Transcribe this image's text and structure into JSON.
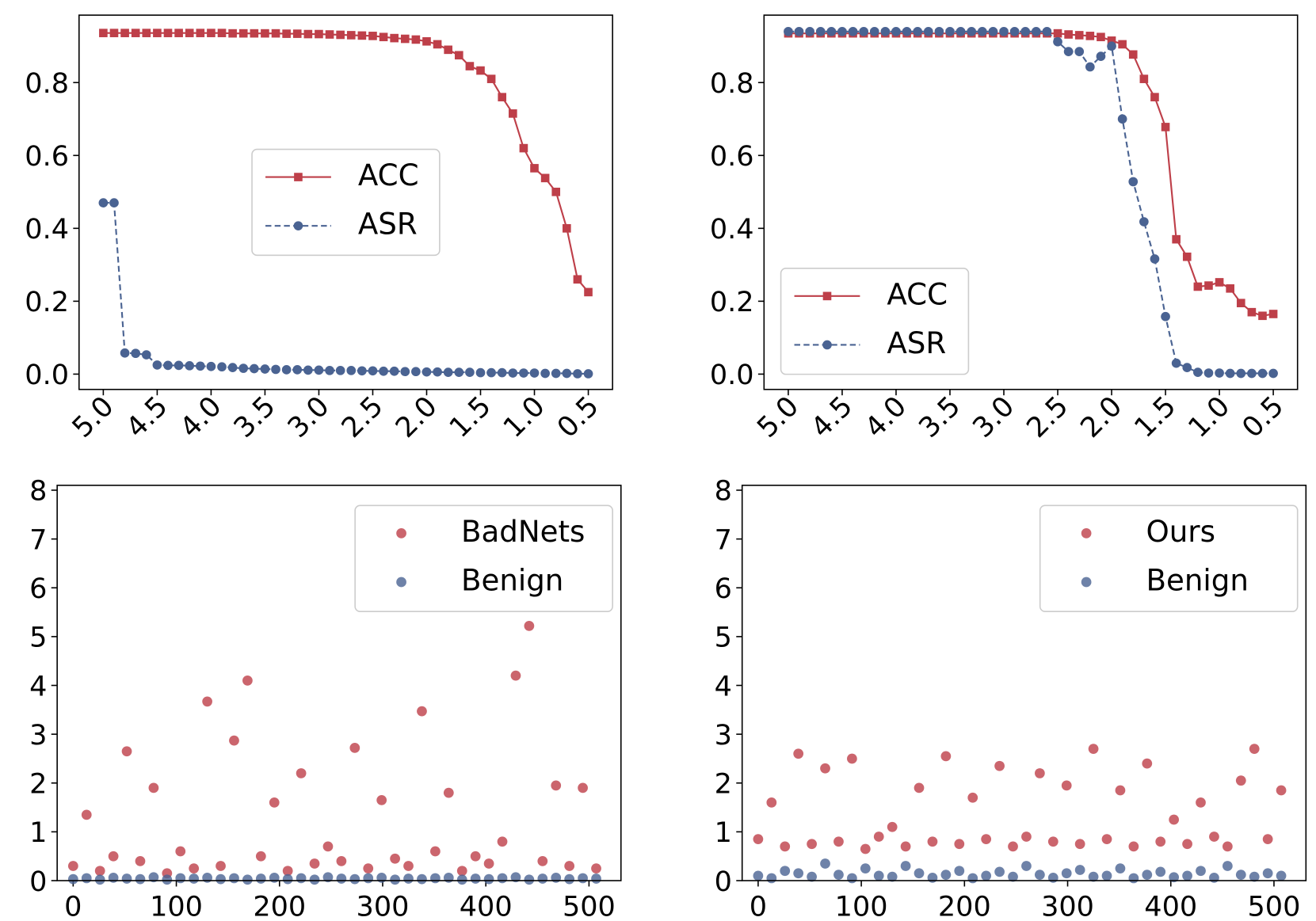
{
  "chart_data": [
    {
      "type": "line",
      "x": [
        5,
        4.9,
        4.8,
        4.7,
        4.6,
        4.5,
        4.4,
        4.3,
        4.2,
        4.1,
        4,
        3.9,
        3.8,
        3.7,
        3.6,
        3.5,
        3.4,
        3.3,
        3.2,
        3.1,
        3,
        2.9,
        2.8,
        2.7,
        2.6,
        2.5,
        2.4,
        2.3,
        2.2,
        2.1,
        2,
        1.9,
        1.8,
        1.7,
        1.6,
        1.5,
        1.4,
        1.3,
        1.2,
        1.1,
        1,
        0.9,
        0.8,
        0.7,
        0.6,
        0.5
      ],
      "series": [
        {
          "name": "ACC",
          "color": "#be3f49",
          "linestyle": "solid",
          "marker": "square",
          "values": [
            0.936,
            0.936,
            0.936,
            0.936,
            0.936,
            0.936,
            0.936,
            0.936,
            0.936,
            0.936,
            0.936,
            0.936,
            0.935,
            0.935,
            0.935,
            0.935,
            0.935,
            0.934,
            0.934,
            0.933,
            0.933,
            0.932,
            0.931,
            0.93,
            0.929,
            0.928,
            0.925,
            0.922,
            0.92,
            0.918,
            0.913,
            0.905,
            0.89,
            0.875,
            0.845,
            0.833,
            0.81,
            0.76,
            0.715,
            0.62,
            0.565,
            0.538,
            0.5,
            0.4,
            0.26,
            0.225
          ]
        },
        {
          "name": "ASR",
          "color": "#4a6392",
          "linestyle": "dashed",
          "marker": "circle",
          "values": [
            0.47,
            0.47,
            0.058,
            0.057,
            0.053,
            0.025,
            0.024,
            0.024,
            0.023,
            0.022,
            0.021,
            0.02,
            0.018,
            0.016,
            0.015,
            0.014,
            0.013,
            0.012,
            0.012,
            0.011,
            0.011,
            0.01,
            0.01,
            0.01,
            0.009,
            0.009,
            0.008,
            0.008,
            0.007,
            0.007,
            0.006,
            0.006,
            0.005,
            0.005,
            0.005,
            0.004,
            0.004,
            0.004,
            0.003,
            0.003,
            0.003,
            0.002,
            0.002,
            0.002,
            0.001,
            0.001
          ]
        }
      ],
      "xlim": [
        5.225,
        0.275
      ],
      "xticks": [
        {
          "value": 5,
          "label": "5.0"
        },
        {
          "value": 4.5,
          "label": "4.5"
        },
        {
          "value": 4,
          "label": "4.0"
        },
        {
          "value": 3.5,
          "label": "3.5"
        },
        {
          "value": 3,
          "label": "3.0"
        },
        {
          "value": 2.5,
          "label": "2.5"
        },
        {
          "value": 2,
          "label": "2.0"
        },
        {
          "value": 1.5,
          "label": "1.5"
        },
        {
          "value": 1,
          "label": "1.0"
        },
        {
          "value": 0.5,
          "label": "0.5"
        }
      ],
      "ylim": [
        -0.042,
        0.985
      ],
      "yticks": [
        {
          "value": 0,
          "label": "0.0"
        },
        {
          "value": 0.2,
          "label": "0.2"
        },
        {
          "value": 0.4,
          "label": "0.4"
        },
        {
          "value": 0.6,
          "label": "0.6"
        },
        {
          "value": 0.8,
          "label": "0.8"
        }
      ],
      "legend": "center"
    },
    {
      "type": "line",
      "x": [
        5,
        4.9,
        4.8,
        4.7,
        4.6,
        4.5,
        4.4,
        4.3,
        4.2,
        4.1,
        4,
        3.9,
        3.8,
        3.7,
        3.6,
        3.5,
        3.4,
        3.3,
        3.2,
        3.1,
        3,
        2.9,
        2.8,
        2.7,
        2.6,
        2.5,
        2.4,
        2.3,
        2.2,
        2.1,
        2,
        1.9,
        1.8,
        1.7,
        1.6,
        1.5,
        1.4,
        1.3,
        1.2,
        1.1,
        1,
        0.9,
        0.8,
        0.7,
        0.6,
        0.5
      ],
      "series": [
        {
          "name": "ACC",
          "color": "#be3f49",
          "linestyle": "solid",
          "marker": "square",
          "values": [
            0.935,
            0.935,
            0.935,
            0.935,
            0.935,
            0.935,
            0.935,
            0.935,
            0.935,
            0.935,
            0.935,
            0.935,
            0.935,
            0.935,
            0.935,
            0.935,
            0.935,
            0.935,
            0.935,
            0.935,
            0.935,
            0.935,
            0.935,
            0.935,
            0.935,
            0.935,
            0.932,
            0.93,
            0.928,
            0.925,
            0.915,
            0.905,
            0.877,
            0.81,
            0.76,
            0.678,
            0.37,
            0.322,
            0.24,
            0.243,
            0.252,
            0.235,
            0.195,
            0.17,
            0.16,
            0.165
          ]
        },
        {
          "name": "ASR",
          "color": "#4a6392",
          "linestyle": "dashed",
          "marker": "circle",
          "values": [
            0.94,
            0.94,
            0.94,
            0.94,
            0.94,
            0.94,
            0.94,
            0.94,
            0.94,
            0.94,
            0.94,
            0.94,
            0.94,
            0.94,
            0.94,
            0.94,
            0.94,
            0.94,
            0.94,
            0.94,
            0.94,
            0.94,
            0.94,
            0.94,
            0.94,
            0.912,
            0.885,
            0.885,
            0.843,
            0.872,
            0.9,
            0.7,
            0.528,
            0.418,
            0.316,
            0.158,
            0.03,
            0.018,
            0.005,
            0.003,
            0.003,
            0.002,
            0.002,
            0.002,
            0.002,
            0.002
          ]
        }
      ],
      "xlim": [
        5.225,
        0.275
      ],
      "xticks": [
        {
          "value": 5,
          "label": "5.0"
        },
        {
          "value": 4.5,
          "label": "4.5"
        },
        {
          "value": 4,
          "label": "4.0"
        },
        {
          "value": 3.5,
          "label": "3.5"
        },
        {
          "value": 3,
          "label": "3.0"
        },
        {
          "value": 2.5,
          "label": "2.5"
        },
        {
          "value": 2,
          "label": "2.0"
        },
        {
          "value": 1.5,
          "label": "1.5"
        },
        {
          "value": 1,
          "label": "1.0"
        },
        {
          "value": 0.5,
          "label": "0.5"
        }
      ],
      "ylim": [
        -0.042,
        0.985
      ],
      "yticks": [
        {
          "value": 0,
          "label": "0.0"
        },
        {
          "value": 0.2,
          "label": "0.2"
        },
        {
          "value": 0.4,
          "label": "0.4"
        },
        {
          "value": 0.6,
          "label": "0.6"
        },
        {
          "value": 0.8,
          "label": "0.8"
        }
      ],
      "legend": "lower left"
    },
    {
      "type": "scatter",
      "x": [
        0,
        13,
        26,
        39,
        52,
        65,
        78,
        91,
        104,
        117,
        130,
        143,
        156,
        169,
        182,
        195,
        208,
        221,
        234,
        247,
        260,
        273,
        286,
        299,
        312,
        325,
        338,
        351,
        364,
        377,
        390,
        403,
        416,
        429,
        442,
        455,
        468,
        481,
        494,
        507
      ],
      "series": [
        {
          "name": "BadNets",
          "color": "#be3f49",
          "values": [
            0.3,
            1.35,
            0.2,
            0.5,
            2.65,
            0.4,
            1.9,
            0.15,
            0.6,
            0.25,
            3.67,
            0.3,
            2.87,
            4.1,
            0.5,
            1.6,
            0.2,
            2.2,
            0.35,
            0.7,
            0.4,
            2.72,
            0.25,
            1.65,
            0.45,
            0.3,
            3.47,
            0.6,
            1.8,
            0.2,
            0.5,
            0.35,
            0.8,
            4.2,
            5.22,
            0.4,
            1.95,
            0.3,
            1.9,
            0.25
          ]
        },
        {
          "name": "Benign",
          "color": "#4a6392",
          "values": [
            0.03,
            0.05,
            0.02,
            0.06,
            0.04,
            0.03,
            0.07,
            0.02,
            0.05,
            0.04,
            0.06,
            0.03,
            0.05,
            0.02,
            0.04,
            0.06,
            0.03,
            0.05,
            0.02,
            0.07,
            0.04,
            0.03,
            0.05,
            0.06,
            0.02,
            0.04,
            0.03,
            0.05,
            0.06,
            0.02,
            0.04,
            0.03,
            0.05,
            0.07,
            0.02,
            0.04,
            0.06,
            0.03,
            0.05,
            0.04
          ]
        }
      ],
      "xlim": [
        -15.5,
        531
      ],
      "xticks": [
        0,
        100,
        200,
        300,
        400,
        500
      ],
      "ylim": [
        0,
        8.1
      ],
      "yticks": [
        0,
        1,
        2,
        3,
        4,
        5,
        6,
        7,
        8
      ],
      "legend": "upper right"
    },
    {
      "type": "scatter",
      "x": [
        0,
        13,
        26,
        39,
        52,
        65,
        78,
        91,
        104,
        117,
        130,
        143,
        156,
        169,
        182,
        195,
        208,
        221,
        234,
        247,
        260,
        273,
        286,
        299,
        312,
        325,
        338,
        351,
        364,
        377,
        390,
        403,
        416,
        429,
        442,
        455,
        468,
        481,
        494,
        507
      ],
      "series": [
        {
          "name": "Ours",
          "color": "#be3f49",
          "values": [
            0.85,
            1.6,
            0.7,
            2.6,
            0.75,
            2.3,
            0.8,
            2.5,
            0.65,
            0.9,
            1.1,
            0.7,
            1.9,
            0.8,
            2.55,
            0.75,
            1.7,
            0.85,
            2.35,
            0.7,
            0.9,
            2.2,
            0.8,
            1.95,
            0.75,
            2.7,
            0.85,
            1.85,
            0.7,
            2.4,
            0.8,
            1.25,
            0.75,
            1.6,
            0.9,
            0.7,
            2.05,
            2.7,
            0.85,
            1.85
          ]
        },
        {
          "name": "Benign",
          "color": "#4a6392",
          "values": [
            0.1,
            0.05,
            0.2,
            0.15,
            0.08,
            0.35,
            0.12,
            0.05,
            0.25,
            0.1,
            0.08,
            0.3,
            0.15,
            0.06,
            0.12,
            0.2,
            0.05,
            0.1,
            0.18,
            0.08,
            0.3,
            0.12,
            0.06,
            0.15,
            0.22,
            0.08,
            0.1,
            0.25,
            0.05,
            0.12,
            0.18,
            0.07,
            0.1,
            0.2,
            0.06,
            0.3,
            0.12,
            0.08,
            0.15,
            0.1
          ]
        }
      ],
      "xlim": [
        -15.5,
        531
      ],
      "xticks": [
        0,
        100,
        200,
        300,
        400,
        500
      ],
      "ylim": [
        0,
        8.1
      ],
      "yticks": [
        0,
        1,
        2,
        3,
        4,
        5,
        6,
        7,
        8
      ],
      "legend": "upper right"
    }
  ]
}
